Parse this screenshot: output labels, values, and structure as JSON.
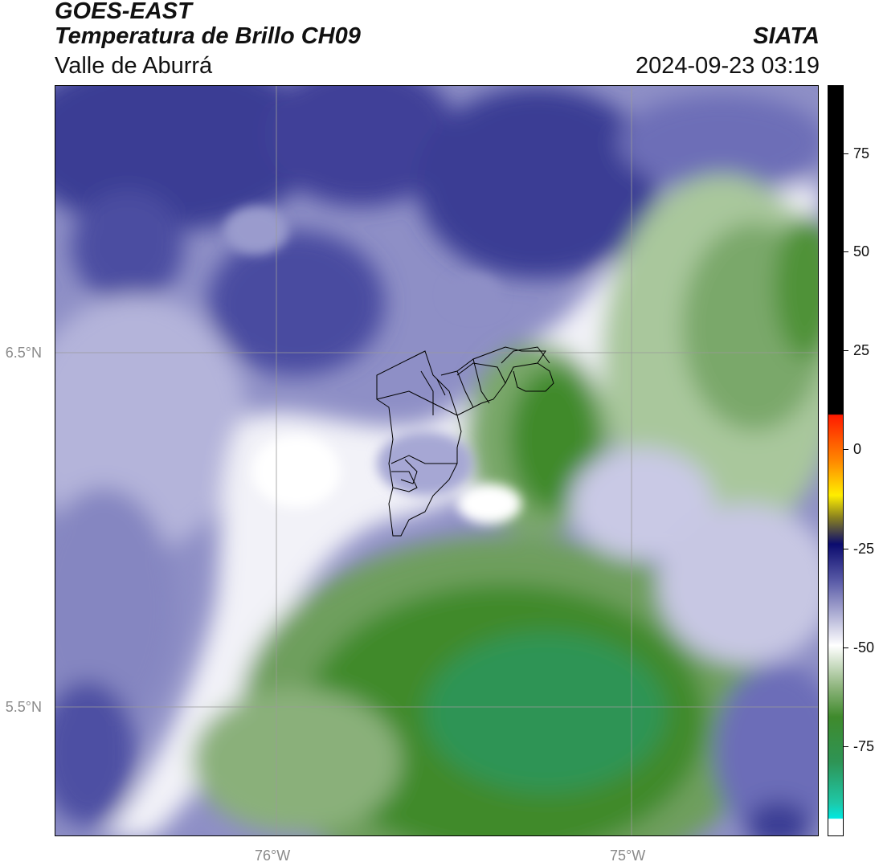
{
  "header": {
    "source": "GOES-EAST",
    "product": "Temperatura de Brillo CH09",
    "region": "Valle de Aburrá",
    "organization": "SIATA",
    "datetime": "2024-09-23 03:19"
  },
  "map": {
    "latitude_labels": [
      "6.5°N",
      "5.5°N"
    ],
    "longitude_labels": [
      "76°W",
      "75°W"
    ],
    "gridlines": true,
    "overlay": "municipal boundaries (black outlines)",
    "colors": {
      "dark_blue": "#2b2e86",
      "mid_blue": "#6c6db8",
      "light_lavender": "#c7c7e3",
      "white": "#ffffff",
      "light_green": "#c9dcc0",
      "mid_green": "#79a866",
      "dark_green": "#3f8a2c",
      "teal_green": "#2e9455"
    }
  },
  "colorbar": {
    "labels": [
      "75",
      "50",
      "25",
      "0",
      "-25",
      "-50",
      "-75"
    ],
    "colors": {
      "black": "#000000",
      "red": "#ff1a00",
      "orange": "#ff8a00",
      "yellow": "#ffee00",
      "olive": "#888020",
      "navy": "#0b0b6e",
      "blue_gray": "#5b5ca8",
      "white": "#ffffff",
      "green": "#3f8a2c",
      "teal": "#1ec8a8",
      "cyan": "#00e8e0"
    }
  }
}
